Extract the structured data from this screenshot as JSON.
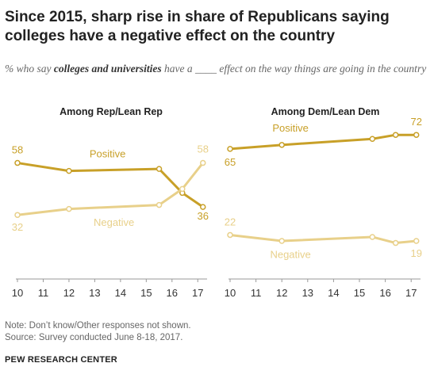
{
  "title": "Since 2015, sharp rise in share of Republicans saying colleges have a negative effect on the country",
  "subtitle": {
    "part1": "% who say ",
    "emphasis": "colleges and universities",
    "part2": " have a ____ effect on the way things are going in the country"
  },
  "note": "Note: Don’t know/Other responses not shown.",
  "source": "Source: Survey conducted June 8-18, 2017.",
  "org": "PEW RESEARCH CENTER",
  "colors": {
    "positive": "#c8a028",
    "negative": "#e8d08a",
    "axis": "#999999",
    "text": "#222222"
  },
  "chart_data": [
    {
      "type": "line",
      "title": "Among Rep/Lean Rep",
      "x_ticks": [
        "10",
        "11",
        "12",
        "13",
        "14",
        "15",
        "16",
        "17"
      ],
      "xlim": [
        10,
        17.3
      ],
      "ylim": [
        0,
        80
      ],
      "series": [
        {
          "name": "Positive",
          "x": [
            10,
            12,
            15.5,
            16.4,
            17.2
          ],
          "values": [
            58,
            54,
            55,
            43,
            36
          ],
          "start_label": "58",
          "end_label": "36"
        },
        {
          "name": "Negative",
          "x": [
            10,
            12,
            15.5,
            16.4,
            17.2
          ],
          "values": [
            32,
            35,
            37,
            45,
            58
          ],
          "start_label": "32",
          "end_label": "58"
        }
      ]
    },
    {
      "type": "line",
      "title": "Among Dem/Lean Dem",
      "x_ticks": [
        "10",
        "11",
        "12",
        "13",
        "14",
        "15",
        "16",
        "17"
      ],
      "xlim": [
        10,
        17.3
      ],
      "ylim": [
        0,
        80
      ],
      "series": [
        {
          "name": "Positive",
          "x": [
            10,
            12,
            15.5,
            16.4,
            17.2
          ],
          "values": [
            65,
            67,
            70,
            72,
            72
          ],
          "start_label": "65",
          "end_label": "72"
        },
        {
          "name": "Negative",
          "x": [
            10,
            12,
            15.5,
            16.4,
            17.2
          ],
          "values": [
            22,
            19,
            21,
            18,
            19
          ],
          "start_label": "22",
          "end_label": "19"
        }
      ]
    }
  ]
}
